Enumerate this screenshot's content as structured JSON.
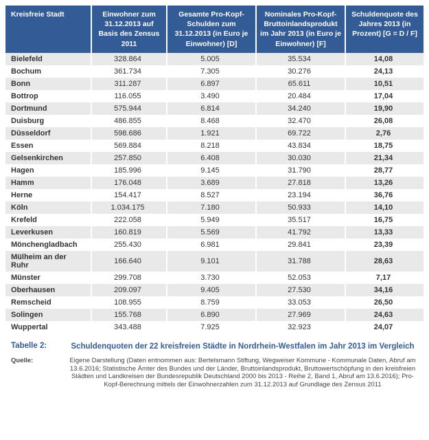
{
  "columns": [
    "Kreisfreie Stadt",
    "Einwohner zum 31.12.2013 auf Basis des Zensus 2011",
    "Gesamte Pro-Kopf-Schulden zum 31.12.2013 (in Euro je Einwohner) [D]",
    "Nominales Pro-Kopf-Bruttoinlandsprodukt im Jahr 2013 (in Euro je Einwohner) [F]",
    "Schuldenquote des Jahres 2013 (in Prozent)\n\n[G = D / F]"
  ],
  "rows": [
    [
      "Bielefeld",
      "328.864",
      "5.005",
      "35.534",
      "14,08"
    ],
    [
      "Bochum",
      "361.734",
      "7.305",
      "30.276",
      "24,13"
    ],
    [
      "Bonn",
      "311.287",
      "6.897",
      "65.611",
      "10,51"
    ],
    [
      "Bottrop",
      "116.055",
      "3.490",
      "20.484",
      "17,04"
    ],
    [
      "Dortmund",
      "575.944",
      "6.814",
      "34.240",
      "19,90"
    ],
    [
      "Duisburg",
      "486.855",
      "8.468",
      "32.470",
      "26,08"
    ],
    [
      "Düsseldorf",
      "598.686",
      "1.921",
      "69.722",
      "2,76"
    ],
    [
      "Essen",
      "569.884",
      "8.218",
      "43.834",
      "18,75"
    ],
    [
      "Gelsenkirchen",
      "257.850",
      "6.408",
      "30.030",
      "21,34"
    ],
    [
      "Hagen",
      "185.996",
      "9.145",
      "31.790",
      "28,77"
    ],
    [
      "Hamm",
      "176.048",
      "3.689",
      "27.818",
      "13,26"
    ],
    [
      "Herne",
      "154.417",
      "8.527",
      "23.194",
      "36,76"
    ],
    [
      "Köln",
      "1.034.175",
      "7.180",
      "50.933",
      "14,10"
    ],
    [
      "Krefeld",
      "222.058",
      "5.949",
      "35.517",
      "16,75"
    ],
    [
      "Leverkusen",
      "160.819",
      "5.569",
      "41.792",
      "13,33"
    ],
    [
      "Mönchengladbach",
      "255.430",
      "6.981",
      "29.841",
      "23,39"
    ],
    [
      "Mülheim an der Ruhr",
      "166.640",
      "9.101",
      "31.788",
      "28,63"
    ],
    [
      "Münster",
      "299.708",
      "3.730",
      "52.053",
      "7,17"
    ],
    [
      "Oberhausen",
      "209.097",
      "9.405",
      "27.530",
      "34,16"
    ],
    [
      "Remscheid",
      "108.955",
      "8.759",
      "33.053",
      "26,50"
    ],
    [
      "Solingen",
      "155.768",
      "6.890",
      "27.969",
      "24,63"
    ],
    [
      "Wuppertal",
      "343.488",
      "7.925",
      "32.923",
      "24,07"
    ]
  ],
  "caption_label": "Tabelle 2:",
  "caption_text": "Schuldenquoten der 22 kreisfreien Städte in Nordrhein-Westfalen im Jahr 2013 im Vergleich",
  "source_label": "Quelle:",
  "source_text": "Eigene Darstellung (Daten entnommen aus: Bertelsmann Stiftung, Wegweiser Kommune - Kommunale Daten, Abruf am 13.6.2016;  Statistische Ämter des Bundes und der Länder, Bruttoinlandsprodukt, Bruttowertschöpfung in den kreisfreien Städten und Landkreisen der Bundesrepublik Deutschland 2000 bis 2013 - Reihe 2, Band 1, Abruf am 13.6.2016);  Pro-Kopf-Berechnung mittels der Einwohnerzahlen zum 31.12.2013 auf Grundlage des Zensus 2011",
  "colors": {
    "header_bg": "#335b95",
    "header_fg": "#ffffff",
    "row_odd_bg": "#e9e9e9",
    "row_even_bg": "#ffffff",
    "caption_color": "#335b95"
  }
}
